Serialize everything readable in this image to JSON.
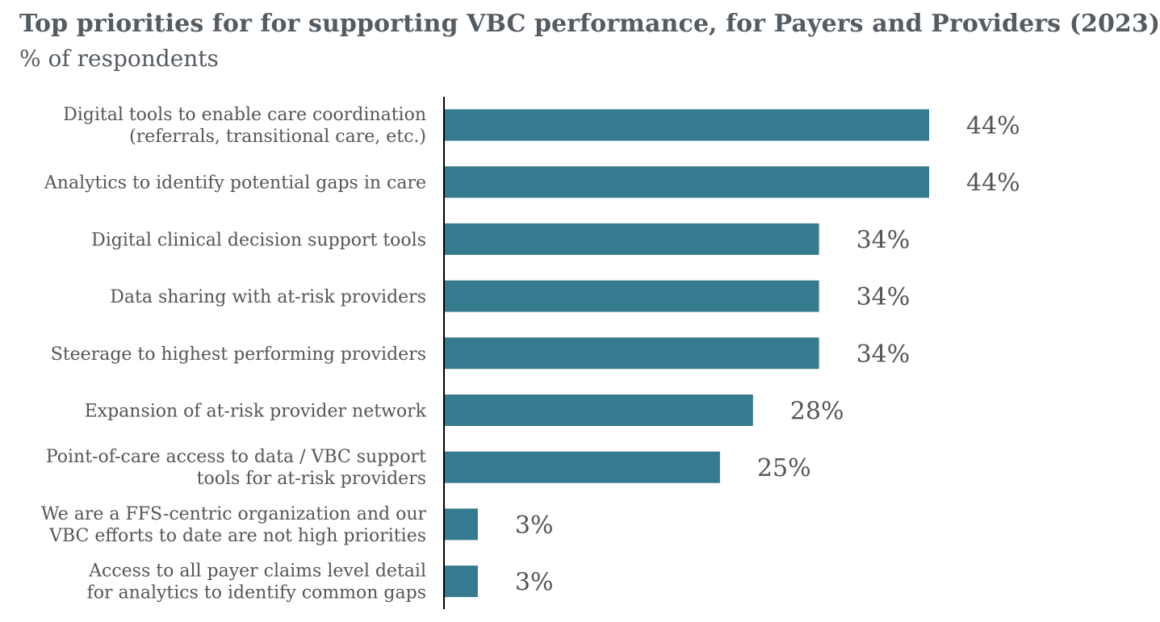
{
  "header": {
    "title": "Top priorities for for supporting VBC performance, for Payers and Providers (2023)",
    "subtitle": "% of respondents"
  },
  "chart_data": {
    "type": "bar",
    "orientation": "horizontal",
    "title": "Top priorities for for supporting VBC performance, for Payers and Providers (2023)",
    "subtitle": "% of respondents",
    "categories": [
      [
        "Digital tools to enable care coordination",
        "(referrals, transitional care, etc.)"
      ],
      [
        "Analytics to identify potential gaps in care"
      ],
      [
        "Digital clinical decision support tools"
      ],
      [
        "Data sharing with at-risk providers"
      ],
      [
        "Steerage to highest performing providers"
      ],
      [
        "Expansion of at-risk provider network"
      ],
      [
        "Point-of-care access to data / VBC support",
        "tools for at-risk providers"
      ],
      [
        "We are a FFS-centric organization and our",
        "VBC efforts to date are not high priorities"
      ],
      [
        "Access to all payer claims level detail",
        "for analytics to identify common gaps"
      ]
    ],
    "values": [
      44,
      44,
      34,
      34,
      34,
      28,
      25,
      3,
      3
    ],
    "value_labels": [
      "44%",
      "44%",
      "34%",
      "34%",
      "34%",
      "28%",
      "25%",
      "3%",
      "3%"
    ],
    "xlim": [
      0,
      44
    ],
    "grid": false,
    "legend": "none",
    "bar_color": "#357a8e",
    "label_color": "#555555",
    "axis_color": "#000000"
  }
}
